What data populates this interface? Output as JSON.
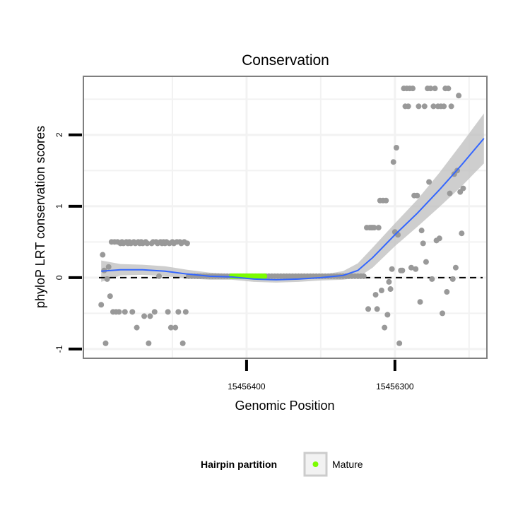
{
  "chart_data": {
    "type": "scatter",
    "title": "Conservation",
    "xlabel": "Genomic Position",
    "ylabel": "phyloP LRT conservation scores",
    "xlim": [
      15456510,
      15456238
    ],
    "ylim": [
      -1.13,
      2.82
    ],
    "x_reversed": true,
    "x_ticks": [
      15456400,
      15456300
    ],
    "x_tick_labels": [
      "15456400",
      "15456300"
    ],
    "y_ticks": [
      -1,
      0,
      1,
      2
    ],
    "y_tick_labels": [
      "-1",
      "0",
      "1",
      "2"
    ],
    "grid": true,
    "reference_line": {
      "y": 0,
      "style": "dashed",
      "color": "#000000"
    },
    "points_color": "#999999",
    "mature_color": "#7cfc00",
    "smooth_color": "#3366ff",
    "band_color": "#bdbdbd",
    "points": [
      [
        15456498,
        -0.38
      ],
      [
        15456497,
        0.32
      ],
      [
        15456496,
        0.1
      ],
      [
        15456495,
        -0.92
      ],
      [
        15456494,
        -0.02
      ],
      [
        15456493,
        0.15
      ],
      [
        15456492,
        -0.26
      ],
      [
        15456491,
        0.5
      ],
      [
        15456490,
        -0.48
      ],
      [
        15456489,
        0.5
      ],
      [
        15456488,
        -0.48
      ],
      [
        15456487,
        0.5
      ],
      [
        15456486,
        -0.48
      ],
      [
        15456485,
        0.48
      ],
      [
        15456484,
        0.5
      ],
      [
        15456483,
        0.48
      ],
      [
        15456482,
        -0.48
      ],
      [
        15456481,
        0.5
      ],
      [
        15456480,
        0.48
      ],
      [
        15456479,
        0.5
      ],
      [
        15456478,
        0.48
      ],
      [
        15456477,
        -0.48
      ],
      [
        15456476,
        0.5
      ],
      [
        15456475,
        0.48
      ],
      [
        15456474,
        -0.7
      ],
      [
        15456473,
        0.5
      ],
      [
        15456472,
        0.48
      ],
      [
        15456471,
        0.5
      ],
      [
        15456470,
        0.48
      ],
      [
        15456469,
        -0.54
      ],
      [
        15456468,
        0.5
      ],
      [
        15456467,
        0.48
      ],
      [
        15456466,
        -0.92
      ],
      [
        15456465,
        -0.54
      ],
      [
        15456464,
        0.48
      ],
      [
        15456463,
        0.5
      ],
      [
        15456462,
        -0.48
      ],
      [
        15456461,
        0.5
      ],
      [
        15456460,
        0.48
      ],
      [
        15456459,
        0.02
      ],
      [
        15456458,
        0.5
      ],
      [
        15456457,
        0.48
      ],
      [
        15456456,
        0.5
      ],
      [
        15456455,
        0.48
      ],
      [
        15456454,
        0.5
      ],
      [
        15456453,
        -0.48
      ],
      [
        15456452,
        0.48
      ],
      [
        15456451,
        -0.7
      ],
      [
        15456450,
        0.5
      ],
      [
        15456449,
        0.48
      ],
      [
        15456448,
        -0.7
      ],
      [
        15456447,
        0.5
      ],
      [
        15456446,
        -0.48
      ],
      [
        15456445,
        0.5
      ],
      [
        15456444,
        0.48
      ],
      [
        15456443,
        -0.92
      ],
      [
        15456442,
        0.5
      ],
      [
        15456441,
        -0.48
      ],
      [
        15456440,
        0.48
      ],
      [
        15456439,
        0.02
      ],
      [
        15456437,
        0.02
      ],
      [
        15456435,
        0.02
      ],
      [
        15456433,
        0.02
      ],
      [
        15456431,
        0.02
      ],
      [
        15456429,
        0.02
      ],
      [
        15456427,
        0.02
      ],
      [
        15456425,
        0.02
      ],
      [
        15456423,
        0.02
      ],
      [
        15456421,
        0.02
      ],
      [
        15456419,
        0.02
      ],
      [
        15456417,
        0.02
      ],
      [
        15456415,
        0.02
      ],
      [
        15456413,
        0.02
      ],
      [
        15456411,
        0.02
      ],
      [
        15456409,
        0.02
      ],
      [
        15456407,
        0.02
      ],
      [
        15456405,
        0.02
      ],
      [
        15456403,
        0.02
      ],
      [
        15456401,
        0.02
      ],
      [
        15456399,
        0.02
      ],
      [
        15456397,
        0.02
      ],
      [
        15456395,
        0.02
      ],
      [
        15456393,
        0.02
      ],
      [
        15456391,
        0.02
      ],
      [
        15456389,
        0.02
      ],
      [
        15456387,
        0.02
      ],
      [
        15456385,
        0.02
      ],
      [
        15456383,
        0.02
      ],
      [
        15456381,
        0.02
      ],
      [
        15456379,
        0.02
      ],
      [
        15456377,
        0.02
      ],
      [
        15456375,
        0.02
      ],
      [
        15456373,
        0.02
      ],
      [
        15456371,
        0.02
      ],
      [
        15456369,
        0.02
      ],
      [
        15456367,
        0.02
      ],
      [
        15456365,
        0.02
      ],
      [
        15456363,
        0.02
      ],
      [
        15456361,
        0.02
      ],
      [
        15456359,
        0.02
      ],
      [
        15456357,
        0.02
      ],
      [
        15456355,
        0.02
      ],
      [
        15456353,
        0.02
      ],
      [
        15456351,
        0.02
      ],
      [
        15456349,
        0.02
      ],
      [
        15456347,
        0.02
      ],
      [
        15456345,
        0.02
      ],
      [
        15456343,
        0.02
      ],
      [
        15456341,
        0.02
      ],
      [
        15456339,
        0.02
      ],
      [
        15456337,
        0.02
      ],
      [
        15456335,
        0.02
      ],
      [
        15456333,
        0.02
      ],
      [
        15456331,
        0.02
      ],
      [
        15456329,
        0.02
      ],
      [
        15456327,
        0.02
      ],
      [
        15456325,
        0.02
      ],
      [
        15456323,
        0.02
      ],
      [
        15456321,
        0.02
      ],
      [
        15456319,
        0.7
      ],
      [
        15456318,
        -0.44
      ],
      [
        15456317,
        0.7
      ],
      [
        15456316,
        0.7
      ],
      [
        15456315,
        0.7
      ],
      [
        15456314,
        0.7
      ],
      [
        15456313,
        -0.24
      ],
      [
        15456312,
        -0.44
      ],
      [
        15456311,
        0.7
      ],
      [
        15456310,
        1.08
      ],
      [
        15456309,
        -0.18
      ],
      [
        15456308,
        1.08
      ],
      [
        15456307,
        -0.7
      ],
      [
        15456306,
        1.08
      ],
      [
        15456305,
        -0.52
      ],
      [
        15456304,
        -0.06
      ],
      [
        15456303,
        -0.16
      ],
      [
        15456302,
        0.12
      ],
      [
        15456301,
        1.62
      ],
      [
        15456300,
        0.64
      ],
      [
        15456299,
        1.82
      ],
      [
        15456298,
        0.6
      ],
      [
        15456297,
        -0.92
      ],
      [
        15456296,
        0.1
      ],
      [
        15456295,
        0.1
      ],
      [
        15456294,
        2.65
      ],
      [
        15456293,
        2.4
      ],
      [
        15456292,
        2.65
      ],
      [
        15456291,
        2.4
      ],
      [
        15456290,
        2.65
      ],
      [
        15456289,
        0.14
      ],
      [
        15456288,
        2.65
      ],
      [
        15456287,
        1.15
      ],
      [
        15456286,
        0.12
      ],
      [
        15456285,
        1.15
      ],
      [
        15456284,
        2.4
      ],
      [
        15456283,
        -0.34
      ],
      [
        15456282,
        0.66
      ],
      [
        15456281,
        0.48
      ],
      [
        15456280,
        2.4
      ],
      [
        15456279,
        0.22
      ],
      [
        15456278,
        2.65
      ],
      [
        15456277,
        1.34
      ],
      [
        15456276,
        2.65
      ],
      [
        15456275,
        -0.02
      ],
      [
        15456274,
        2.4
      ],
      [
        15456273,
        2.65
      ],
      [
        15456272,
        0.52
      ],
      [
        15456271,
        2.4
      ],
      [
        15456270,
        0.55
      ],
      [
        15456269,
        2.4
      ],
      [
        15456268,
        -0.5
      ],
      [
        15456267,
        2.4
      ],
      [
        15456266,
        2.65
      ],
      [
        15456265,
        -0.2
      ],
      [
        15456264,
        2.65
      ],
      [
        15456263,
        1.18
      ],
      [
        15456262,
        2.4
      ],
      [
        15456261,
        -0.02
      ],
      [
        15456260,
        1.45
      ],
      [
        15456259,
        0.14
      ],
      [
        15456258,
        1.5
      ],
      [
        15456257,
        2.55
      ],
      [
        15456256,
        1.2
      ],
      [
        15456255,
        0.62
      ],
      [
        15456254,
        1.25
      ]
    ],
    "mature_points": [
      [
        15456410,
        0.02
      ],
      [
        15456408,
        0.02
      ],
      [
        15456406,
        0.02
      ],
      [
        15456404,
        0.02
      ],
      [
        15456402,
        0.02
      ],
      [
        15456400,
        0.02
      ],
      [
        15456398,
        0.02
      ],
      [
        15456396,
        0.02
      ],
      [
        15456394,
        0.02
      ],
      [
        15456392,
        0.02
      ],
      [
        15456390,
        0.02
      ],
      [
        15456388,
        0.02
      ]
    ],
    "smooth": [
      [
        15456498,
        0.09
      ],
      [
        15456485,
        0.11
      ],
      [
        15456470,
        0.11
      ],
      [
        15456455,
        0.09
      ],
      [
        15456440,
        0.05
      ],
      [
        15456425,
        0.02
      ],
      [
        15456410,
        0.01
      ],
      [
        15456395,
        -0.02
      ],
      [
        15456380,
        -0.03
      ],
      [
        15456365,
        -0.02
      ],
      [
        15456350,
        0.0
      ],
      [
        15456335,
        0.03
      ],
      [
        15456325,
        0.1
      ],
      [
        15456315,
        0.28
      ],
      [
        15456300,
        0.6
      ],
      [
        15456285,
        0.9
      ],
      [
        15456270,
        1.23
      ],
      [
        15456255,
        1.58
      ],
      [
        15456240,
        1.95
      ]
    ],
    "band_upper": [
      [
        15456498,
        0.24
      ],
      [
        15456485,
        0.19
      ],
      [
        15456470,
        0.18
      ],
      [
        15456455,
        0.16
      ],
      [
        15456440,
        0.11
      ],
      [
        15456425,
        0.07
      ],
      [
        15456410,
        0.05
      ],
      [
        15456395,
        0.02
      ],
      [
        15456380,
        0.01
      ],
      [
        15456365,
        0.02
      ],
      [
        15456350,
        0.04
      ],
      [
        15456335,
        0.09
      ],
      [
        15456325,
        0.2
      ],
      [
        15456315,
        0.42
      ],
      [
        15456300,
        0.76
      ],
      [
        15456285,
        1.09
      ],
      [
        15456270,
        1.47
      ],
      [
        15456255,
        1.88
      ],
      [
        15456240,
        2.3
      ]
    ],
    "band_lower": [
      [
        15456498,
        -0.06
      ],
      [
        15456485,
        0.03
      ],
      [
        15456470,
        0.04
      ],
      [
        15456455,
        0.02
      ],
      [
        15456440,
        -0.01
      ],
      [
        15456425,
        -0.03
      ],
      [
        15456410,
        -0.03
      ],
      [
        15456395,
        -0.06
      ],
      [
        15456380,
        -0.07
      ],
      [
        15456365,
        -0.06
      ],
      [
        15456350,
        -0.04
      ],
      [
        15456335,
        -0.03
      ],
      [
        15456325,
        0.0
      ],
      [
        15456315,
        0.14
      ],
      [
        15456300,
        0.44
      ],
      [
        15456285,
        0.71
      ],
      [
        15456270,
        0.99
      ],
      [
        15456255,
        1.28
      ],
      [
        15456240,
        1.6
      ]
    ],
    "legend": {
      "title": "Hairpin partition",
      "entries": [
        {
          "label": "Mature",
          "color": "#7cfc00"
        }
      ],
      "position": "bottom"
    }
  }
}
